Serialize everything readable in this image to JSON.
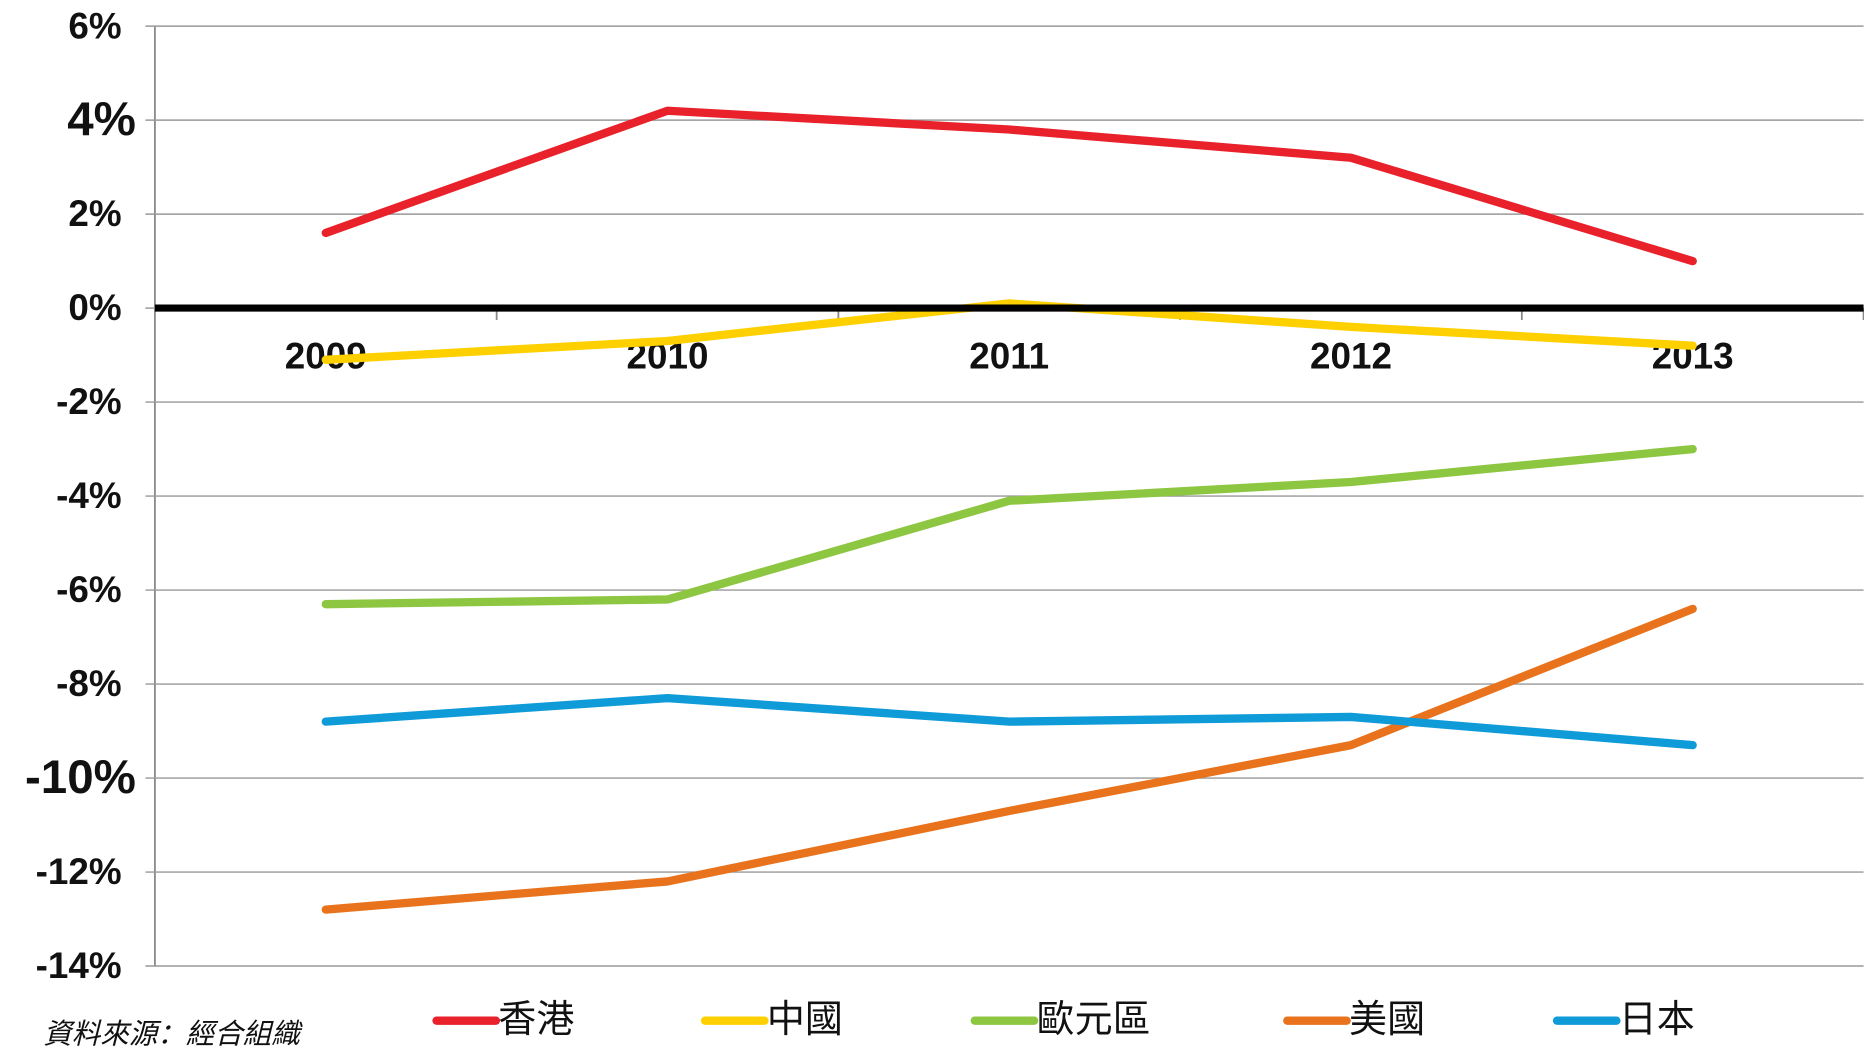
{
  "chart_data": {
    "type": "line",
    "categories": [
      "2009",
      "2010",
      "2011",
      "2012",
      "2013"
    ],
    "series": [
      {
        "name": "香港",
        "color": "#e8212b",
        "values": [
          1.6,
          4.2,
          3.8,
          3.2,
          1.0
        ]
      },
      {
        "name": "中國",
        "color": "#ffd000",
        "values": [
          -1.1,
          -0.7,
          0.1,
          -0.4,
          -0.8
        ]
      },
      {
        "name": "歐元區",
        "color": "#8dc641",
        "values": [
          -6.3,
          -6.2,
          -4.1,
          -3.7,
          -3.0
        ]
      },
      {
        "name": "美國",
        "color": "#e8731c",
        "values": [
          -12.8,
          -12.2,
          -10.7,
          -9.3,
          -6.4
        ]
      },
      {
        "name": "日本",
        "color": "#0f9ad8",
        "values": [
          -8.8,
          -8.3,
          -8.8,
          -8.7,
          -9.3
        ]
      }
    ],
    "ylim": [
      -14,
      6
    ],
    "yticks": [
      {
        "value": -14,
        "label": "-14%"
      },
      {
        "value": -12,
        "label": "-12%"
      },
      {
        "value": -10,
        "label": "-10%",
        "color": "#4f81bd"
      },
      {
        "value": -8,
        "label": "-8%"
      },
      {
        "value": -6,
        "label": "-6%"
      },
      {
        "value": -4,
        "label": "-4%"
      },
      {
        "value": -2,
        "label": "-2%"
      },
      {
        "value": 0,
        "label": "0%"
      },
      {
        "value": 2,
        "label": "2%"
      },
      {
        "value": 4,
        "label": "4%",
        "color": "#ff0000"
      },
      {
        "value": 6,
        "label": "6%"
      }
    ],
    "grid": true,
    "legend": "bottom",
    "source": "資料來源：經合組織"
  }
}
